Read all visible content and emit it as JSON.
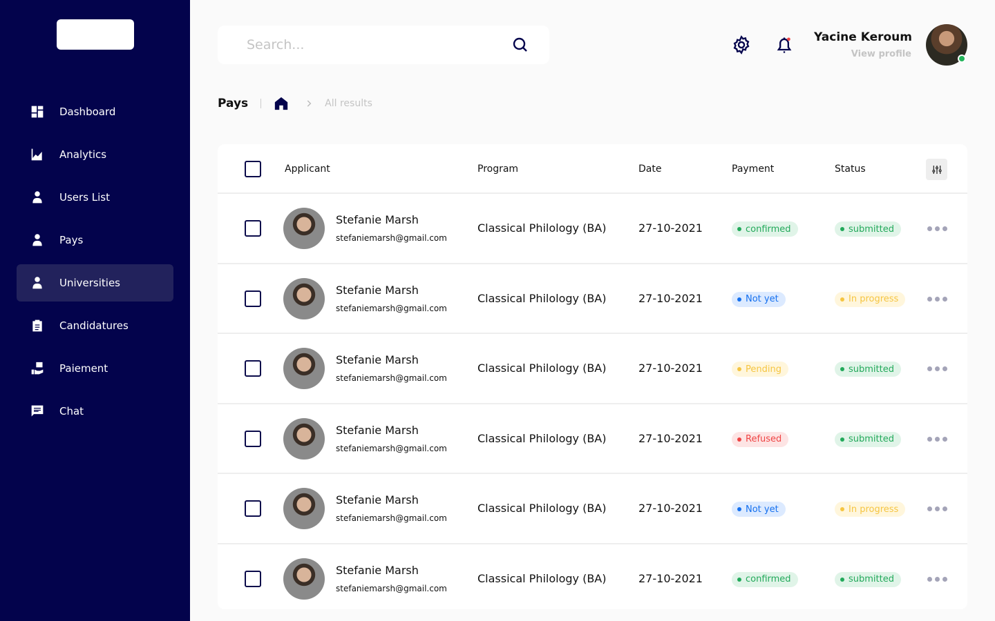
{
  "sidebar": {
    "items": [
      {
        "label": "Dashboard",
        "icon": "dashboard-icon"
      },
      {
        "label": "Analytics",
        "icon": "analytics-icon"
      },
      {
        "label": "Users List",
        "icon": "user-icon"
      },
      {
        "label": "Pays",
        "icon": "user-icon"
      },
      {
        "label": "Universities",
        "icon": "user-icon",
        "active": true
      },
      {
        "label": "Candidatures",
        "icon": "clipboard-icon"
      },
      {
        "label": "Paiement",
        "icon": "payment-icon"
      },
      {
        "label": "Chat",
        "icon": "chat-icon"
      }
    ]
  },
  "search": {
    "placeholder": "Search..."
  },
  "profile": {
    "name": "Yacine Keroum",
    "link": "View profile",
    "online": true
  },
  "breadcrumb": {
    "title": "Pays",
    "current": "All results"
  },
  "table": {
    "headers": [
      "Applicant",
      "Program",
      "Date",
      "Payment",
      "Status"
    ],
    "rows": [
      {
        "name": "Stefanie Marsh",
        "email": "stefaniemarsh@gmail.com",
        "program": "Classical Philology (BA)",
        "date": "27-10-2021",
        "payment": "confirmed",
        "status": "submitted"
      },
      {
        "name": "Stefanie Marsh",
        "email": "stefaniemarsh@gmail.com",
        "program": "Classical Philology (BA)",
        "date": "27-10-2021",
        "payment": "Not yet",
        "status": "In progress"
      },
      {
        "name": "Stefanie Marsh",
        "email": "stefaniemarsh@gmail.com",
        "program": "Classical Philology (BA)",
        "date": "27-10-2021",
        "payment": "Pending",
        "status": "submitted"
      },
      {
        "name": "Stefanie Marsh",
        "email": "stefaniemarsh@gmail.com",
        "program": "Classical Philology (BA)",
        "date": "27-10-2021",
        "payment": "Refused",
        "status": "submitted"
      },
      {
        "name": "Stefanie Marsh",
        "email": "stefaniemarsh@gmail.com",
        "program": "Classical Philology (BA)",
        "date": "27-10-2021",
        "payment": "Not yet",
        "status": "In progress"
      },
      {
        "name": "Stefanie Marsh",
        "email": "stefaniemarsh@gmail.com",
        "program": "Classical Philology (BA)",
        "date": "27-10-2021",
        "payment": "confirmed",
        "status": "submitted"
      }
    ]
  },
  "colors": {
    "sidebar": "#03034c",
    "green": "#22a95a",
    "blue": "#1570ef",
    "yellow": "#f5c542",
    "red": "#ef4444"
  }
}
